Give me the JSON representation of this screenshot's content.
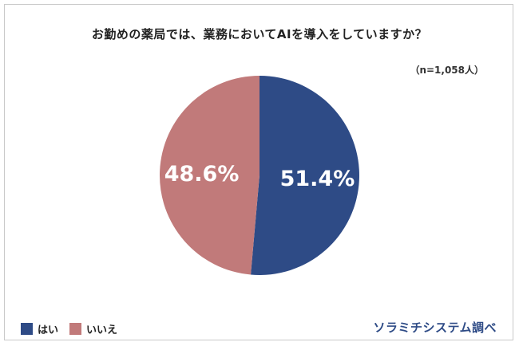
{
  "title": "お勤めの薬局では、業務においてAIを導入をしていますか？",
  "sample_note": "（n=1,058人）",
  "source": "ソラミチシステム調べ",
  "chart_data": {
    "type": "pie",
    "categories": [
      "はい",
      "いいえ"
    ],
    "values": [
      51.4,
      48.6
    ],
    "labels": [
      "51.4%",
      "48.6%"
    ],
    "colors": [
      "#2e4b86",
      "#c17a7a"
    ],
    "legend_position": "bottom-left"
  },
  "legend": [
    {
      "label": "はい",
      "color": "#2e4b86"
    },
    {
      "label": "いいえ",
      "color": "#c17a7a"
    }
  ]
}
